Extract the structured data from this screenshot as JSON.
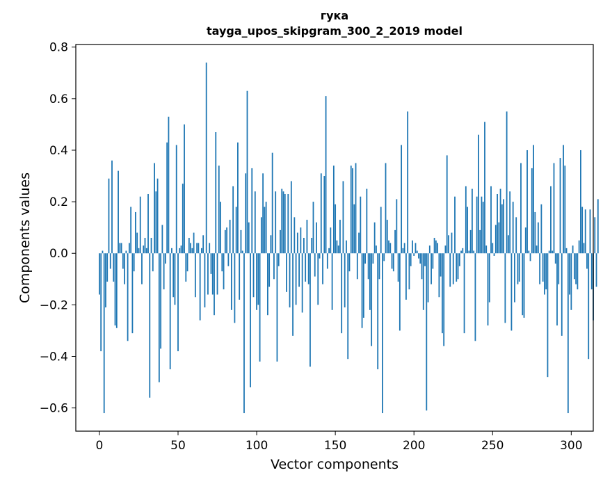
{
  "chart_data": {
    "type": "bar",
    "title": [
      "гука",
      "tayga_upos_skipgram_300_2_2019 model"
    ],
    "xlabel": "Vector components",
    "ylabel": "Components values",
    "xlim": [
      -15,
      314
    ],
    "ylim": [
      -0.69,
      0.81
    ],
    "xticks": [
      0,
      50,
      100,
      150,
      200,
      250,
      300
    ],
    "yticks": [
      -0.6,
      -0.4,
      -0.2,
      0.0,
      0.2,
      0.4,
      0.6,
      0.8
    ],
    "ytick_labels": [
      "−0.6",
      "−0.4",
      "−0.2",
      "0.0",
      "0.2",
      "0.4",
      "0.6",
      "0.8"
    ],
    "color": "#1f77b4",
    "grid": false,
    "values": [
      -0.16,
      -0.38,
      0.01,
      -0.62,
      -0.21,
      -0.11,
      0.29,
      -0.06,
      0.36,
      -0.11,
      -0.28,
      -0.29,
      0.32,
      0.04,
      0.04,
      -0.06,
      -0.12,
      0.01,
      -0.34,
      0.04,
      0.18,
      -0.31,
      -0.07,
      0.16,
      0.08,
      0.02,
      0.22,
      -0.12,
      0.03,
      0.06,
      0.02,
      0.23,
      -0.56,
      0.06,
      -0.07,
      0.35,
      0.24,
      0.29,
      -0.5,
      -0.37,
      0.11,
      -0.14,
      -0.04,
      0.43,
      0.53,
      -0.45,
      0.02,
      -0.17,
      -0.2,
      0.42,
      -0.38,
      0.02,
      0.03,
      0.27,
      0.5,
      -0.11,
      -0.07,
      0.06,
      0.04,
      0.02,
      0.08,
      -0.17,
      0.04,
      0.04,
      -0.26,
      0.02,
      0.07,
      -0.21,
      0.74,
      -0.16,
      0.04,
      -0.08,
      -0.16,
      -0.24,
      0.47,
      -0.16,
      0.34,
      0.2,
      -0.07,
      -0.14,
      0.09,
      0.1,
      -0.05,
      0.13,
      -0.22,
      0.26,
      -0.27,
      0.18,
      0.43,
      -0.18,
      0.09,
      0.01,
      -0.62,
      0.31,
      0.63,
      0.12,
      -0.52,
      0.33,
      -0.17,
      0.24,
      -0.22,
      -0.2,
      -0.42,
      0.14,
      0.31,
      0.18,
      0.2,
      -0.24,
      -0.13,
      0.07,
      0.39,
      -0.1,
      0.24,
      -0.42,
      -0.05,
      0.09,
      0.25,
      0.24,
      0.23,
      -0.15,
      0.23,
      -0.21,
      0.28,
      -0.32,
      0.14,
      -0.2,
      0.08,
      -0.13,
      0.1,
      -0.23,
      0.06,
      -0.11,
      0.13,
      -0.12,
      -0.44,
      0.06,
      0.2,
      -0.09,
      0.12,
      -0.2,
      -0.02,
      0.31,
      -0.12,
      0.3,
      0.61,
      -0.06,
      0.02,
      0.1,
      -0.22,
      0.34,
      0.19,
      0.05,
      0.03,
      0.13,
      -0.31,
      0.28,
      -0.21,
      0.05,
      -0.41,
      -0.07,
      0.34,
      0.33,
      0.19,
      0.35,
      -0.1,
      0.08,
      0.22,
      -0.29,
      -0.25,
      -0.04,
      0.25,
      -0.1,
      -0.22,
      -0.36,
      -0.04,
      0.12,
      0.03,
      -0.45,
      -0.1,
      0.18,
      -0.62,
      -0.03,
      0.35,
      0.13,
      0.05,
      0.04,
      -0.06,
      -0.07,
      0.09,
      0.21,
      -0.11,
      -0.3,
      0.42,
      0.02,
      0.04,
      -0.18,
      0.55,
      -0.14,
      -0.05,
      0.05,
      -0.01,
      0.04,
      0.01,
      -0.02,
      -0.04,
      -0.1,
      -0.22,
      -0.05,
      -0.61,
      -0.19,
      0.03,
      -0.12,
      -0.06,
      0.06,
      0.05,
      0.04,
      -0.17,
      -0.09,
      -0.31,
      -0.36,
      0.03,
      0.38,
      0.07,
      -0.13,
      0.08,
      -0.12,
      0.22,
      -0.11,
      -0.1,
      -0.05,
      0.01,
      0.02,
      -0.31,
      0.26,
      0.18,
      0.01,
      0.09,
      0.25,
      0.01,
      -0.34,
      0.22,
      0.46,
      0.09,
      0.22,
      0.2,
      0.51,
      0.03,
      -0.28,
      -0.19,
      0.26,
      0.04,
      -0.01,
      0.11,
      0.23,
      0.12,
      0.25,
      0.19,
      0.21,
      -0.27,
      0.55,
      0.07,
      0.24,
      -0.3,
      0.2,
      -0.19,
      0.14,
      -0.12,
      -0.11,
      0.35,
      -0.24,
      -0.25,
      0.1,
      0.4,
      0.01,
      -0.03,
      0.33,
      0.42,
      0.16,
      0.03,
      0.12,
      -0.12,
      0.19,
      -0.11,
      -0.16,
      -0.14,
      -0.48,
      0.01,
      0.26,
      0.01,
      0.35,
      -0.04,
      -0.28,
      -0.12,
      0.37,
      -0.32,
      0.42,
      0.34,
      0.02,
      -0.62,
      -0.16,
      -0.22,
      0.03,
      -0.1,
      -0.12,
      -0.14,
      0.05,
      0.4,
      0.18,
      0.04,
      0.17,
      -0.06,
      -0.41,
      0.17,
      -0.14,
      -0.26,
      0.14,
      -0.13,
      0.21
    ]
  }
}
